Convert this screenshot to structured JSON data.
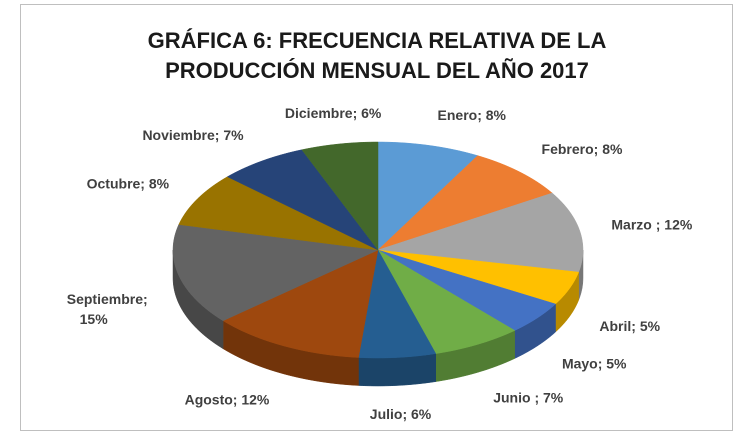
{
  "chart_data": {
    "type": "pie",
    "title": [
      "GRÁFICA 6: FRECUENCIA RELATIVA DE LA",
      "PRODUCCIÓN MENSUAL DEL AÑO 2017"
    ],
    "values": [
      8,
      8,
      12,
      5,
      5,
      7,
      6,
      12,
      15,
      8,
      7,
      6
    ],
    "value_labels": [
      [
        "Enero; 8%"
      ],
      [
        "Febrero; 8%"
      ],
      [
        "Marzo ; 12%"
      ],
      [
        "Abril; 5%"
      ],
      [
        "Mayo; 5%"
      ],
      [
        "Junio ; 7%"
      ],
      [
        "Julio; 6%"
      ],
      [
        "Agosto; 12%"
      ],
      [
        "Septiembre;",
        "15%"
      ],
      [
        "Octubre; 8%"
      ],
      [
        "Noviembre; 7%"
      ],
      [
        "Diciembre; 6%"
      ]
    ],
    "colors": [
      "#5b9bd5",
      "#ed7d31",
      "#a5a5a5",
      "#ffc000",
      "#4472c4",
      "#70ad47",
      "#255e91",
      "#9e480e",
      "#636363",
      "#997300",
      "#264478",
      "#43682b"
    ]
  }
}
